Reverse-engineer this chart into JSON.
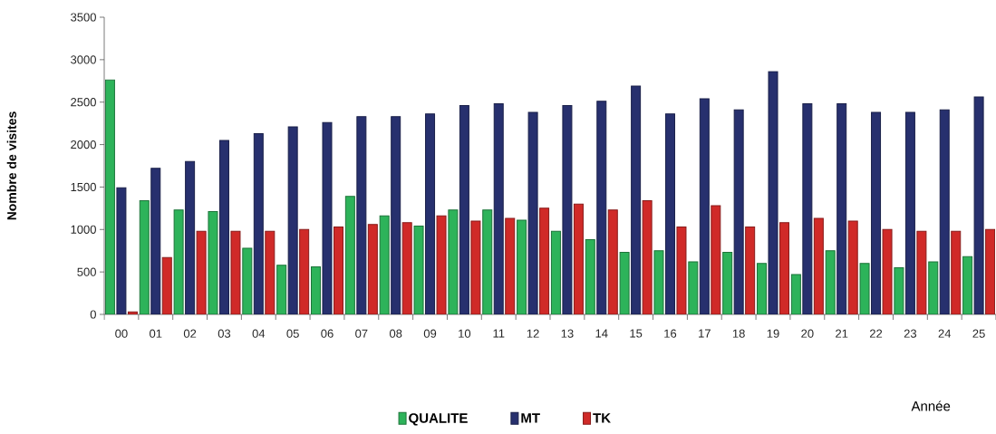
{
  "chart_data": {
    "type": "bar",
    "xlabel": "Année",
    "ylabel": "Nombre de visites",
    "categories": [
      "00",
      "01",
      "02",
      "03",
      "04",
      "05",
      "06",
      "07",
      "08",
      "09",
      "10",
      "11",
      "12",
      "13",
      "14",
      "15",
      "16",
      "17",
      "18",
      "19",
      "20",
      "21",
      "22",
      "23",
      "24",
      "25"
    ],
    "series": [
      {
        "name": "QUALITE",
        "color": "#2db35a",
        "values": [
          2760,
          1340,
          1230,
          1210,
          780,
          580,
          560,
          1390,
          1160,
          1040,
          1230,
          1230,
          1110,
          980,
          880,
          730,
          750,
          620,
          730,
          600,
          470,
          750,
          600,
          550,
          620,
          680
        ]
      },
      {
        "name": "MT",
        "color": "#27306e",
        "values": [
          1490,
          1720,
          1800,
          2050,
          2130,
          2210,
          2260,
          2330,
          2330,
          2360,
          2460,
          2480,
          2380,
          2460,
          2510,
          2690,
          2360,
          2540,
          2410,
          2860,
          2480,
          2480,
          2380,
          2380,
          2410,
          2560
        ]
      },
      {
        "name": "TK",
        "color": "#d02a28",
        "values": [
          30,
          670,
          980,
          980,
          980,
          1000,
          1030,
          1060,
          1080,
          1160,
          1100,
          1130,
          1250,
          1300,
          1230,
          1340,
          1030,
          1280,
          1030,
          1080,
          1130,
          1100,
          1000,
          980,
          980,
          1000
        ]
      }
    ],
    "ylim": [
      0,
      3500
    ],
    "yticks": [
      0,
      500,
      1000,
      1500,
      2000,
      2500,
      3000,
      3500
    ],
    "grid": false,
    "legend": "bottom"
  }
}
